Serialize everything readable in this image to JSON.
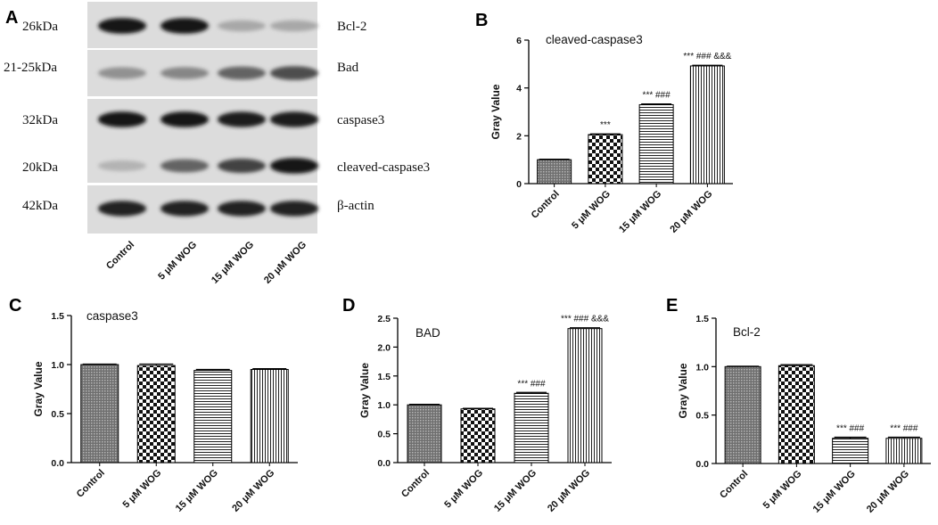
{
  "panel_letters": {
    "a": "A",
    "b": "B",
    "c": "C",
    "d": "D",
    "e": "E"
  },
  "blot": {
    "rows": [
      {
        "weight": "26kDa",
        "protein": "Bcl-2",
        "intensity": [
          0.95,
          0.95,
          0.3,
          0.3
        ]
      },
      {
        "weight": "21-25kDa",
        "protein": "Bad",
        "intensity": [
          0.4,
          0.45,
          0.6,
          0.7
        ]
      },
      {
        "weight": "32kDa",
        "protein": "caspase3",
        "intensity": [
          0.95,
          0.95,
          0.92,
          0.92
        ]
      },
      {
        "weight": "20kDa",
        "protein": "cleaved-caspase3",
        "intensity": [
          0.25,
          0.6,
          0.75,
          0.95
        ]
      },
      {
        "weight": "42kDa",
        "protein": "β-actin",
        "intensity": [
          0.9,
          0.9,
          0.9,
          0.9
        ]
      }
    ],
    "lanes": [
      "Control",
      "5 μM WOG",
      "15 μM WOG",
      "20 μM WOG"
    ]
  },
  "chart_data": [
    {
      "panel": "B",
      "type": "bar",
      "title": "cleaved-caspase3",
      "xlabel": "",
      "ylabel": "Gray Value",
      "categories": [
        "Control",
        "5 μM WOG",
        "15 μM WOG",
        "20 μM WOG"
      ],
      "values": [
        1.0,
        2.05,
        3.3,
        4.92
      ],
      "errors": [
        0.02,
        0.03,
        0.03,
        0.03
      ],
      "ylim": [
        0,
        6
      ],
      "yticks": [
        0,
        2,
        4,
        6
      ],
      "annotations": [
        "",
        "***",
        "*** ###",
        "*** ### &&&"
      ],
      "patterns": [
        "dense",
        "checker",
        "hlines",
        "vlines"
      ]
    },
    {
      "panel": "C",
      "type": "bar",
      "title": "caspase3",
      "xlabel": "",
      "ylabel": "Gray Value",
      "categories": [
        "Control",
        "5 μM WOG",
        "15 μM WOG",
        "20 μM WOG"
      ],
      "values": [
        1.0,
        0.99,
        0.94,
        0.95
      ],
      "errors": [
        0.005,
        0.015,
        0.01,
        0.008
      ],
      "ylim": [
        0,
        1.5
      ],
      "yticks": [
        0.0,
        0.5,
        1.0,
        1.5
      ],
      "annotations": [
        "",
        "",
        "",
        ""
      ],
      "patterns": [
        "dense",
        "checker",
        "hlines",
        "vlines"
      ]
    },
    {
      "panel": "D",
      "type": "bar",
      "title": "BAD",
      "xlabel": "",
      "ylabel": "Gray Value",
      "categories": [
        "Control",
        "5 μM WOG",
        "15 μM WOG",
        "20 μM WOG"
      ],
      "values": [
        1.0,
        0.93,
        1.2,
        2.32
      ],
      "errors": [
        0.01,
        0.01,
        0.015,
        0.015
      ],
      "ylim": [
        0,
        2.5
      ],
      "yticks": [
        0.0,
        0.5,
        1.0,
        1.5,
        2.0,
        2.5
      ],
      "annotations": [
        "",
        "",
        "*** ###",
        "*** ### &&&"
      ],
      "patterns": [
        "dense",
        "checker",
        "hlines",
        "vlines"
      ]
    },
    {
      "panel": "E",
      "type": "bar",
      "title": "Bcl-2",
      "xlabel": "",
      "ylabel": "Gray Value",
      "categories": [
        "Control",
        "5 μM WOG",
        "15 μM WOG",
        "20 μM WOG"
      ],
      "values": [
        1.0,
        1.01,
        0.26,
        0.26
      ],
      "errors": [
        0.005,
        0.01,
        0.012,
        0.012
      ],
      "ylim": [
        0,
        1.5
      ],
      "yticks": [
        0.0,
        0.5,
        1.0,
        1.5
      ],
      "annotations": [
        "",
        "",
        "*** ###",
        "*** ###"
      ],
      "patterns": [
        "dense",
        "checker",
        "hlines",
        "vlines"
      ]
    }
  ]
}
